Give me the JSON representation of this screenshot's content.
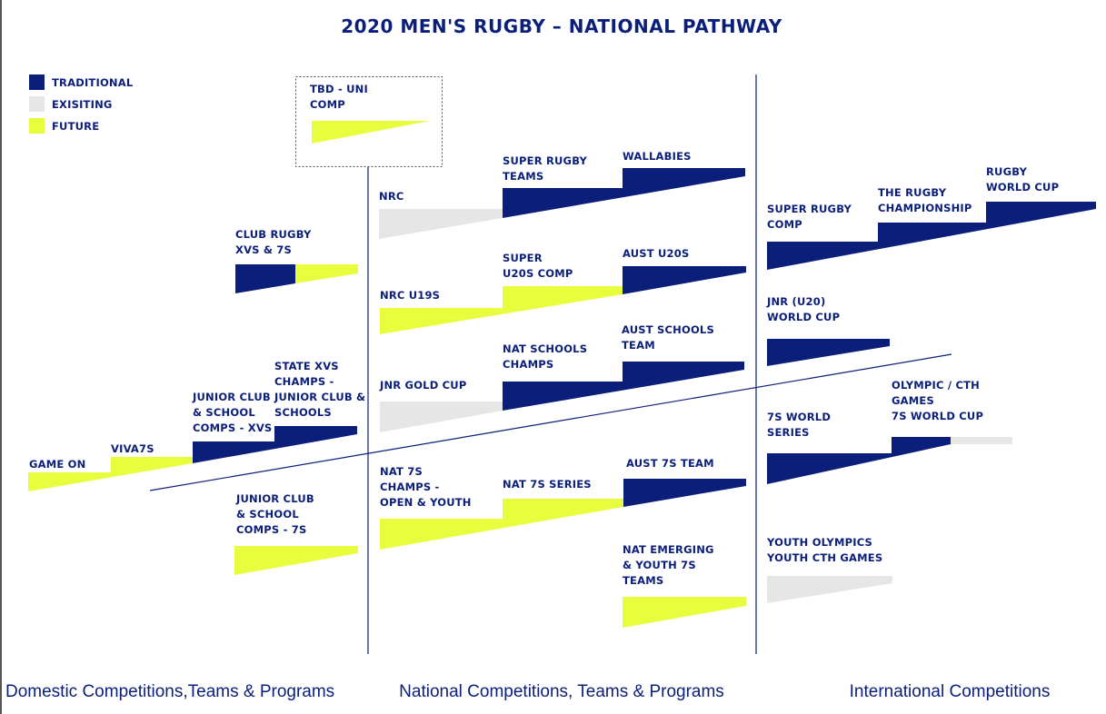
{
  "title": "2020 MEN'S RUGBY – NATIONAL PATHWAY",
  "legend": [
    {
      "label": "TRADITIONAL",
      "color": "#0b1f7a"
    },
    {
      "label": "EXISITING",
      "color": "#e6e6e6"
    },
    {
      "label": "FUTURE",
      "color": "#e9fd3f"
    }
  ],
  "labels": {
    "tbd_uni": [
      "TBD - UNI",
      "COMP"
    ],
    "nrc": [
      "NRC"
    ],
    "super_rugby_teams": [
      "SUPER RUGBY",
      "TEAMS"
    ],
    "wallabies": [
      "WALLABIES"
    ],
    "super_rugby_comp": [
      "SUPER RUGBY",
      "COMP"
    ],
    "rugby_championship": [
      "THE RUGBY",
      "CHAMPIONSHIP"
    ],
    "rugby_world_cup": [
      "RUGBY",
      "WORLD CUP"
    ],
    "club_rugby": [
      "CLUB RUGBY",
      "XVS & 7S"
    ],
    "nrc_u19s": [
      "NRC U19S"
    ],
    "super_u20s": [
      "SUPER",
      "U20S COMP"
    ],
    "aust_u20s": [
      "AUST U20S"
    ],
    "jnr_world_cup": [
      "JNR (U20)",
      "WORLD CUP"
    ],
    "jnr_gold_cup": [
      "JNR GOLD CUP"
    ],
    "nat_schools": [
      "NAT SCHOOLS",
      "CHAMPS"
    ],
    "aust_schools": [
      "AUST SCHOOLS",
      "TEAM"
    ],
    "game_on": [
      "GAME ON"
    ],
    "viva7s": [
      "VIVA7S"
    ],
    "junior_club_xvs": [
      "JUNIOR CLUB",
      "& SCHOOL",
      "COMPS - XVS"
    ],
    "state_xvs": [
      "STATE XVS",
      "CHAMPS -",
      "JUNIOR CLUB &",
      "SCHOOLS"
    ],
    "sevens_world_series": [
      "7S WORLD",
      "SERIES"
    ],
    "olympic_cth": [
      "OLYMPIC / CTH",
      "GAMES",
      "7S WORLD CUP"
    ],
    "junior_club_7s": [
      "JUNIOR CLUB",
      "& SCHOOL",
      "COMPS - 7S"
    ],
    "nat_7s_champs": [
      "NAT 7S",
      "CHAMPS -",
      "OPEN & YOUTH"
    ],
    "nat_7s_series": [
      "NAT 7S SERIES"
    ],
    "aust_7s_team": [
      "AUST 7S TEAM"
    ],
    "nat_emerging": [
      "NAT EMERGING",
      "& YOUTH 7S",
      "TEAMS"
    ],
    "youth_olympics": [
      "YOUTH OLYMPICS",
      "YOUTH CTH GAMES"
    ]
  },
  "footer": {
    "domestic": "Domestic Competitions,Teams & Programs",
    "national": "National Competitions, Teams & Programs",
    "international": "International Competitions"
  }
}
